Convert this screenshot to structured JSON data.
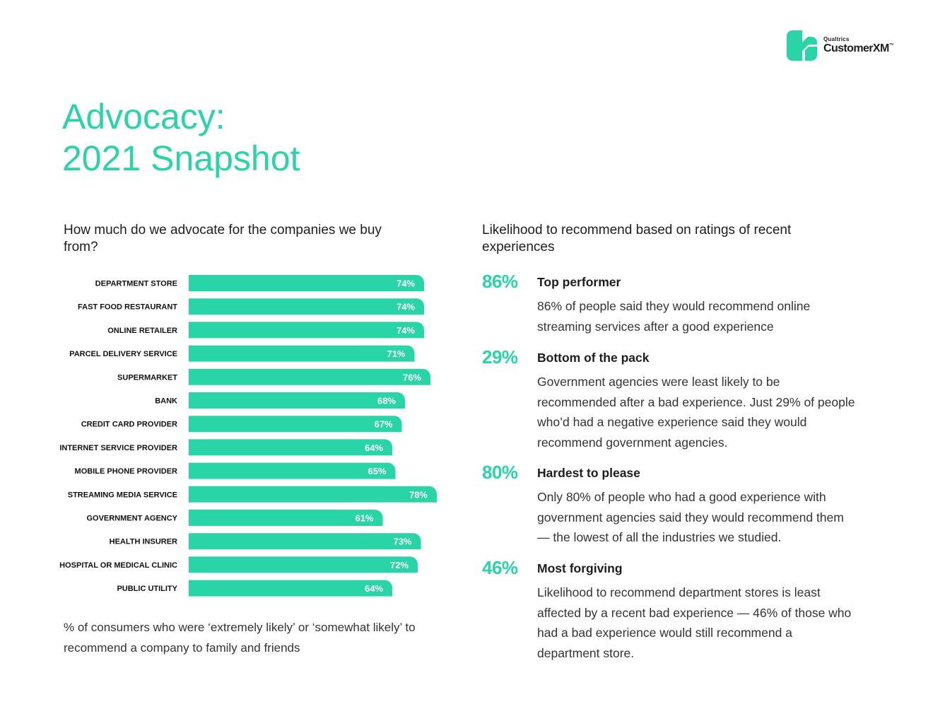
{
  "brand": {
    "company": "Qualtrics",
    "product": "CustomerXM",
    "trademark": "™",
    "accent_color": "#29d4a6",
    "text_color": "#1d1d1d"
  },
  "title": {
    "line1": "Advocacy:",
    "line2": "2021 Snapshot"
  },
  "left_section": {
    "heading": "How much do we advocate for the companies we buy from?",
    "caption": "% of consumers who were ‘extremely likely’ or ‘somewhat likely’ to recommend a company to family and friends"
  },
  "chart_data": {
    "type": "bar",
    "orientation": "horizontal",
    "title": "How much do we advocate for the companies we buy from?",
    "xlabel": "",
    "ylabel": "",
    "xlim": [
      0,
      100
    ],
    "grid": false,
    "unit": "%",
    "categories": [
      "DEPARTMENT STORE",
      "FAST FOOD RESTAURANT",
      "ONLINE RETAILER",
      "PARCEL DELIVERY SERVICE",
      "SUPERMARKET",
      "BANK",
      "CREDIT CARD PROVIDER",
      "INTERNET SERVICE PROVIDER",
      "MOBILE PHONE PROVIDER",
      "STREAMING MEDIA SERVICE",
      "GOVERNMENT AGENCY",
      "HEALTH INSURER",
      "HOSPITAL OR MEDICAL CLINIC",
      "PUBLIC UTILITY"
    ],
    "values": [
      74,
      74,
      74,
      71,
      76,
      68,
      67,
      64,
      65,
      78,
      61,
      73,
      72,
      64
    ],
    "bar_color": "#29d4a6",
    "label_color": "#ffffff"
  },
  "right_section": {
    "heading": "Likelihood to recommend based on ratings of recent experiences",
    "stats": [
      {
        "value": "86%",
        "title": "Top performer",
        "body": "86% of people said they would recommend online streaming services after a good experience"
      },
      {
        "value": "29%",
        "title": "Bottom of the pack",
        "body": "Government agencies were least likely to be recommended after a bad experience. Just 29% of people who’d had a negative experience said they would recommend government agencies."
      },
      {
        "value": "80%",
        "title": "Hardest to please",
        "body": "Only 80% of people who had a good experience with government agencies said they would recommend them — the lowest of all the industries we studied."
      },
      {
        "value": "46%",
        "title": "Most forgiving",
        "body": "Likelihood to recommend department stores is least affected by a recent bad experience — 46% of those who had a bad experience would still recommend a department store."
      }
    ]
  }
}
